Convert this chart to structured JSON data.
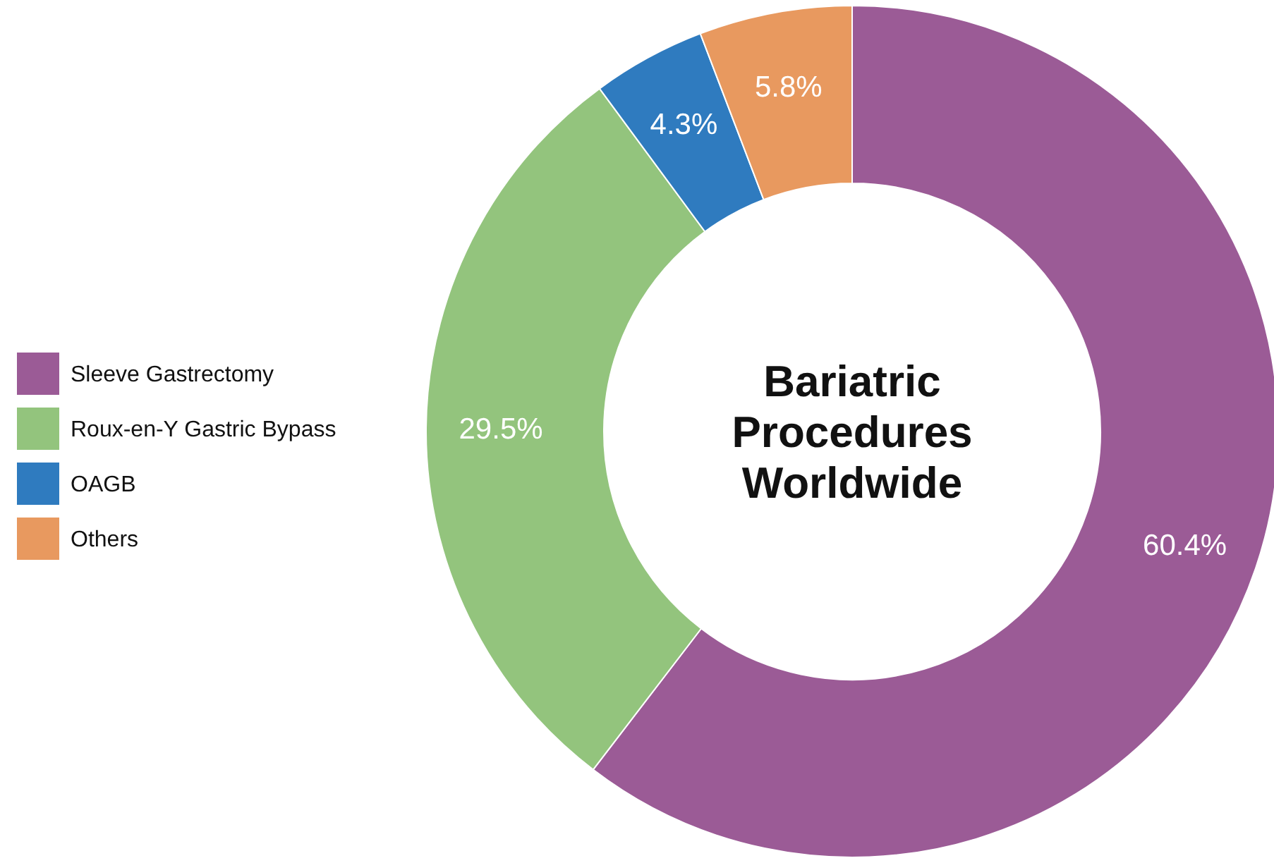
{
  "chart_data": {
    "type": "donut",
    "title": "Bariatric Procedures Worldwide",
    "categories": [
      "Sleeve Gastrectomy",
      "Roux-en-Y Gastric Bypass",
      "OAGB",
      "Others"
    ],
    "values": [
      60.4,
      29.5,
      4.3,
      5.8
    ],
    "colors": [
      "#9b5b96",
      "#93c47d",
      "#2f7bbf",
      "#e8995f"
    ],
    "value_labels": [
      "60.4%",
      "29.5%",
      "4.3%",
      "5.8%"
    ],
    "legend": "left"
  }
}
